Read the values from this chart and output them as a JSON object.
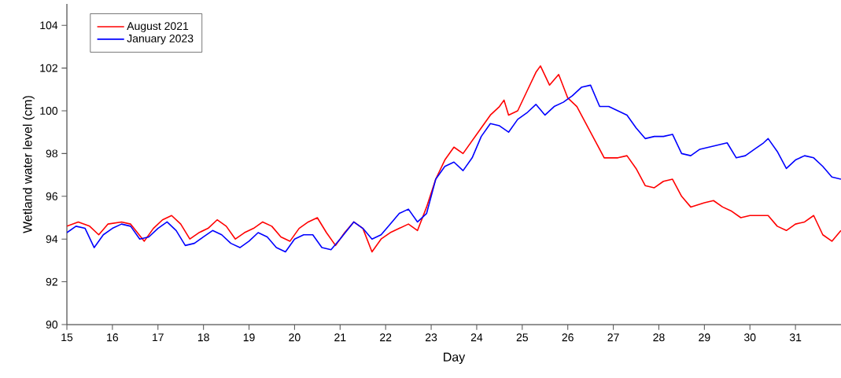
{
  "chart_data": {
    "type": "line",
    "xlabel": "Day",
    "ylabel": "Wetland water level (cm)",
    "xlim": [
      15,
      32
    ],
    "ylim": [
      90,
      105
    ],
    "xticks": [
      15,
      16,
      17,
      18,
      19,
      20,
      21,
      22,
      23,
      24,
      25,
      26,
      27,
      28,
      29,
      30,
      31
    ],
    "yticks": [
      90,
      92,
      94,
      96,
      98,
      100,
      102,
      104
    ],
    "legend": "top left",
    "series": [
      {
        "name": "August 2021",
        "color": "#ff0000",
        "x": [
          15.0,
          15.25,
          15.5,
          15.7,
          15.9,
          16.2,
          16.4,
          16.7,
          16.9,
          17.1,
          17.3,
          17.5,
          17.7,
          17.9,
          18.1,
          18.3,
          18.5,
          18.7,
          18.9,
          19.1,
          19.3,
          19.5,
          19.7,
          19.9,
          20.1,
          20.3,
          20.5,
          20.7,
          20.9,
          21.1,
          21.3,
          21.5,
          21.7,
          21.9,
          22.1,
          22.3,
          22.5,
          22.7,
          22.9,
          23.1,
          23.3,
          23.5,
          23.7,
          23.9,
          24.1,
          24.3,
          24.5,
          24.6,
          24.7,
          24.9,
          25.1,
          25.3,
          25.4,
          25.6,
          25.8,
          26.0,
          26.2,
          26.4,
          26.6,
          26.8,
          27.1,
          27.3,
          27.5,
          27.7,
          27.9,
          28.1,
          28.3,
          28.5,
          28.7,
          29.0,
          29.2,
          29.4,
          29.6,
          29.8,
          30.0,
          30.2,
          30.4,
          30.6,
          30.8,
          31.0,
          31.2,
          31.4,
          31.6,
          31.8,
          32.0
        ],
        "values": [
          94.6,
          94.8,
          94.6,
          94.2,
          94.7,
          94.8,
          94.7,
          93.9,
          94.5,
          94.9,
          95.1,
          94.7,
          94.0,
          94.3,
          94.5,
          94.9,
          94.6,
          94.0,
          94.3,
          94.5,
          94.8,
          94.6,
          94.1,
          93.9,
          94.5,
          94.8,
          95.0,
          94.3,
          93.7,
          94.3,
          94.8,
          94.5,
          93.4,
          94.0,
          94.3,
          94.5,
          94.7,
          94.4,
          95.5,
          96.8,
          97.7,
          98.3,
          98.0,
          98.6,
          99.2,
          99.8,
          100.2,
          100.5,
          99.8,
          100.0,
          100.9,
          101.8,
          102.1,
          101.2,
          101.7,
          100.6,
          100.2,
          99.4,
          98.6,
          97.8,
          97.8,
          97.9,
          97.3,
          96.5,
          96.4,
          96.7,
          96.8,
          96.0,
          95.5,
          95.7,
          95.8,
          95.5,
          95.3,
          95.0,
          95.1,
          95.1,
          95.1,
          94.6,
          94.4,
          94.7,
          94.8,
          95.1,
          94.2,
          93.9,
          94.4
        ]
      },
      {
        "name": "January 2023",
        "color": "#0000ff",
        "x": [
          15.0,
          15.2,
          15.4,
          15.6,
          15.8,
          16.0,
          16.2,
          16.4,
          16.6,
          16.8,
          17.0,
          17.2,
          17.4,
          17.6,
          17.8,
          18.0,
          18.2,
          18.4,
          18.6,
          18.8,
          19.0,
          19.2,
          19.4,
          19.6,
          19.8,
          20.0,
          20.2,
          20.4,
          20.6,
          20.8,
          21.0,
          21.3,
          21.5,
          21.7,
          21.9,
          22.1,
          22.3,
          22.5,
          22.7,
          22.9,
          23.1,
          23.3,
          23.5,
          23.7,
          23.9,
          24.1,
          24.3,
          24.5,
          24.7,
          24.9,
          25.1,
          25.3,
          25.5,
          25.7,
          25.9,
          26.1,
          26.3,
          26.5,
          26.7,
          26.9,
          27.1,
          27.3,
          27.5,
          27.7,
          27.9,
          28.1,
          28.3,
          28.5,
          28.7,
          28.9,
          29.1,
          29.3,
          29.5,
          29.7,
          29.9,
          30.1,
          30.3,
          30.4,
          30.6,
          30.8,
          31.0,
          31.2,
          31.4,
          31.6,
          31.8,
          32.0
        ],
        "values": [
          94.3,
          94.6,
          94.5,
          93.6,
          94.2,
          94.5,
          94.7,
          94.6,
          94.0,
          94.1,
          94.5,
          94.8,
          94.4,
          93.7,
          93.8,
          94.1,
          94.4,
          94.2,
          93.8,
          93.6,
          93.9,
          94.3,
          94.1,
          93.6,
          93.4,
          94.0,
          94.2,
          94.2,
          93.6,
          93.5,
          94.0,
          94.8,
          94.5,
          94.0,
          94.2,
          94.7,
          95.2,
          95.4,
          94.8,
          95.2,
          96.8,
          97.4,
          97.6,
          97.2,
          97.8,
          98.8,
          99.4,
          99.3,
          99.0,
          99.6,
          99.9,
          100.3,
          99.8,
          100.2,
          100.4,
          100.7,
          101.1,
          101.2,
          100.2,
          100.2,
          100.0,
          99.8,
          99.2,
          98.7,
          98.8,
          98.8,
          98.9,
          98.0,
          97.9,
          98.2,
          98.3,
          98.4,
          98.5,
          97.8,
          97.9,
          98.2,
          98.5,
          98.7,
          98.1,
          97.3,
          97.7,
          97.9,
          97.8,
          97.4,
          96.9,
          96.8
        ]
      }
    ]
  }
}
